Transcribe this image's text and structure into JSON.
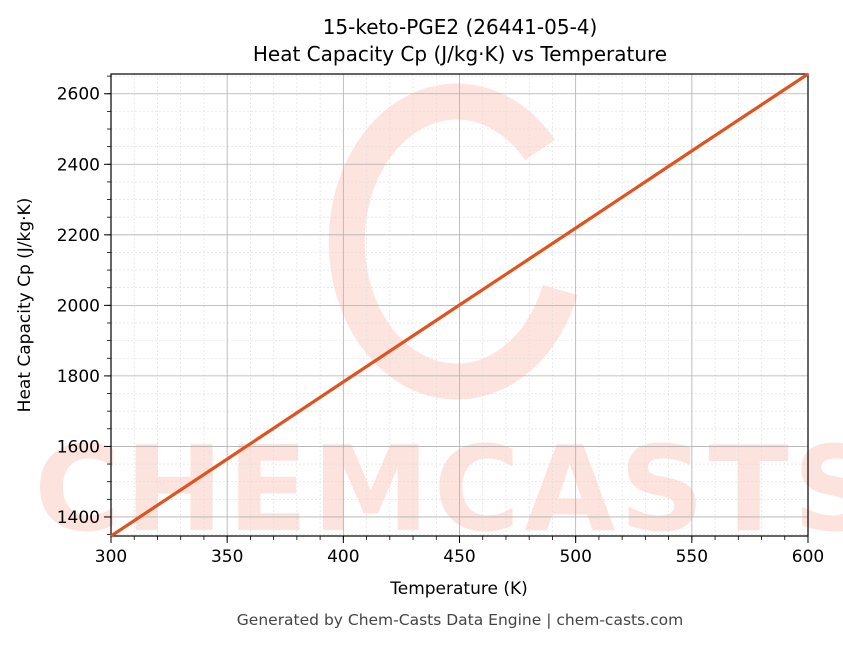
{
  "chart_data": {
    "type": "line",
    "title": "15-keto-PGE2 (26441-05-4)",
    "subtitle": "Heat Capacity Cp (J/kg·K) vs Temperature",
    "xlabel": "Temperature (K)",
    "ylabel": "Heat Capacity Cp (J/kg·K)",
    "xlim": [
      300,
      600
    ],
    "ylim": [
      1346,
      2656
    ],
    "xticks": [
      300,
      350,
      400,
      450,
      500,
      550,
      600
    ],
    "yticks": [
      1400,
      1600,
      1800,
      2000,
      2200,
      2400,
      2600
    ],
    "grid": true,
    "series": [
      {
        "x": [
          300,
          350,
          400,
          450,
          500,
          550,
          600
        ],
        "y": [
          1346,
          1564,
          1783,
          2001,
          2219,
          2438,
          2656
        ],
        "color": "#e0531f"
      }
    ],
    "watermark": "CHEMCASTS",
    "footer": "Generated by Chem-Casts Data Engine | chem-casts.com"
  }
}
